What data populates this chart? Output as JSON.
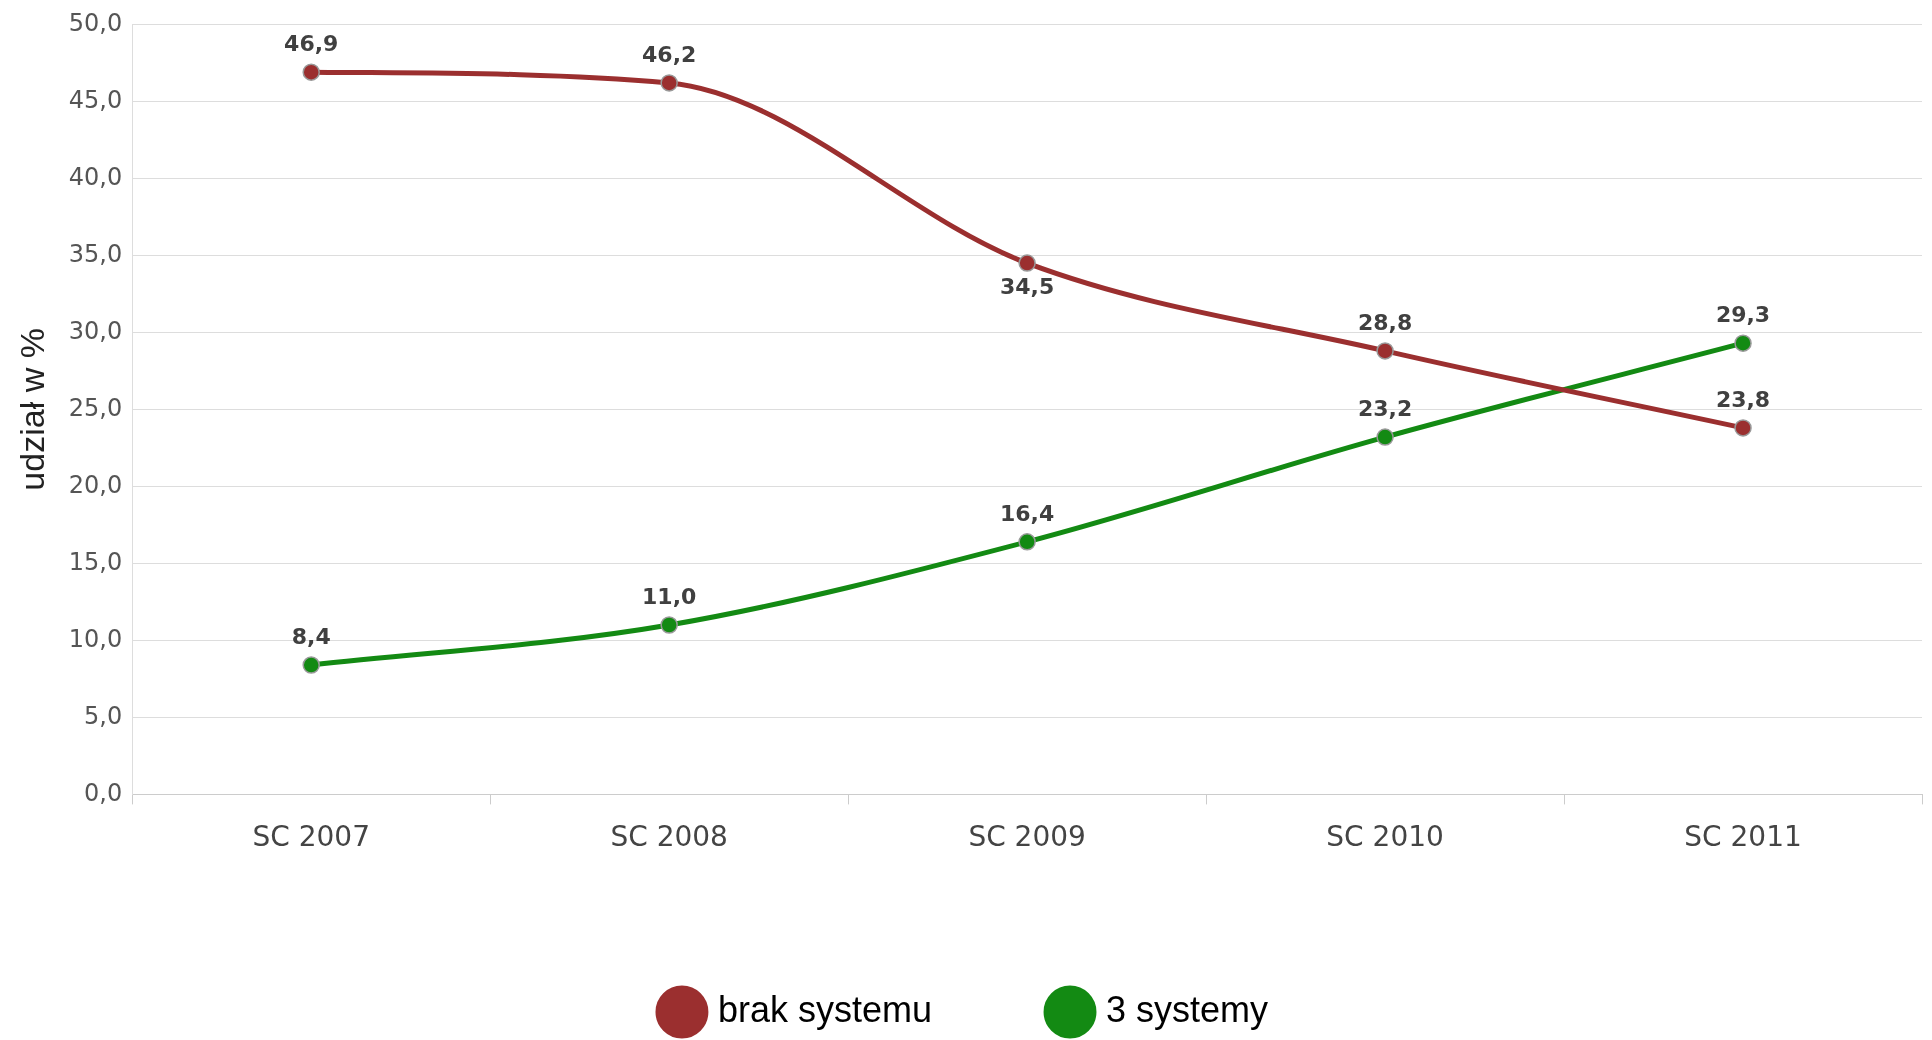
{
  "chart_data": {
    "type": "line",
    "ylabel": "udział w %",
    "categories": [
      "SC 2007",
      "SC 2008",
      "SC 2009",
      "SC 2010",
      "SC 2011"
    ],
    "series": [
      {
        "name": "brak systemu",
        "color": "#9b2f2f",
        "values": [
          46.9,
          46.2,
          34.5,
          28.8,
          23.8
        ],
        "value_labels": [
          "46,9",
          "46,2",
          "34,5",
          "28,8",
          "23,8"
        ]
      },
      {
        "name": "3 systemy",
        "color": "#138a13",
        "values": [
          8.4,
          11.0,
          16.4,
          23.2,
          29.3
        ],
        "value_labels": [
          "8,4",
          "11,0",
          "16,4",
          "23,2",
          "29,3"
        ]
      }
    ],
    "ylim": [
      0,
      50
    ],
    "yticks": [
      {
        "value": 0,
        "label": "0,0"
      },
      {
        "value": 5,
        "label": "5,0"
      },
      {
        "value": 10,
        "label": "10,0"
      },
      {
        "value": 15,
        "label": "15,0"
      },
      {
        "value": 20,
        "label": "20,0"
      },
      {
        "value": 25,
        "label": "25,0"
      },
      {
        "value": 30,
        "label": "30,0"
      },
      {
        "value": 35,
        "label": "35,0"
      },
      {
        "value": 40,
        "label": "40,0"
      },
      {
        "value": 45,
        "label": "45,0"
      },
      {
        "value": 50,
        "label": "50,0"
      }
    ],
    "grid": "y",
    "legend": "bottom",
    "marker": "circle",
    "line_style": "solid"
  }
}
